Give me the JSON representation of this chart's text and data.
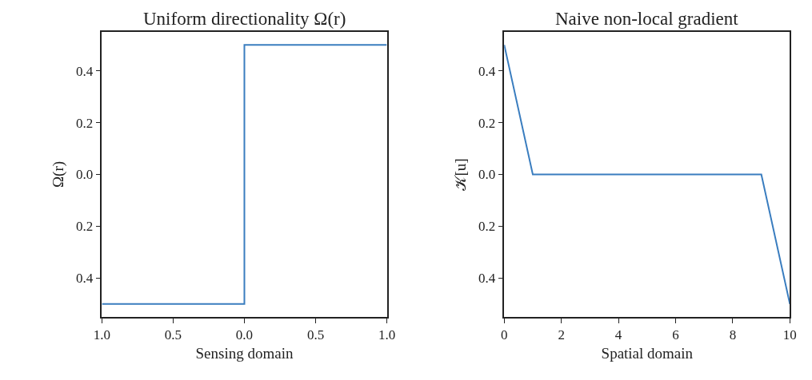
{
  "chart_data": [
    {
      "type": "line",
      "title": "Uniform directionality Ω(r)",
      "xlabel": "Sensing domain",
      "ylabel": "Ω(r)",
      "series": [
        {
          "color": "#3a7dbf",
          "x": [
            -1,
            0,
            0,
            1
          ],
          "values": [
            -0.5,
            -0.5,
            0.5,
            0.5
          ]
        }
      ],
      "xlim": [
        -1,
        1
      ],
      "xticks": [
        {
          "value": -1,
          "label": "1.0"
        },
        {
          "value": -0.5,
          "label": "0.5"
        },
        {
          "value": 0,
          "label": "0.0"
        },
        {
          "value": 0.5,
          "label": "0.5"
        },
        {
          "value": 1,
          "label": "1.0"
        }
      ],
      "ylim": [
        -0.55,
        0.55
      ],
      "yticks": [
        {
          "value": -0.4,
          "label": "0.4"
        },
        {
          "value": -0.2,
          "label": "0.2"
        },
        {
          "value": 0,
          "label": "0.0"
        },
        {
          "value": 0.2,
          "label": "0.2"
        },
        {
          "value": 0.4,
          "label": "0.4"
        }
      ],
      "marker": "none",
      "line_style": "solid"
    },
    {
      "type": "line",
      "title": "Naive non-local gradient",
      "xlabel": "Spatial domain",
      "ylabel": "𝒦[u]",
      "series": [
        {
          "color": "#3a7dbf",
          "x": [
            0,
            1,
            9,
            10
          ],
          "values": [
            0.5,
            0,
            0,
            -0.5
          ]
        }
      ],
      "xlim": [
        0,
        10
      ],
      "xticks": [
        0,
        2,
        4,
        6,
        8,
        10
      ],
      "ylim": [
        -0.55,
        0.55
      ],
      "yticks": [
        {
          "value": -0.4,
          "label": "0.4"
        },
        {
          "value": -0.2,
          "label": "0.2"
        },
        {
          "value": 0,
          "label": "0.0"
        },
        {
          "value": 0.2,
          "label": "0.2"
        },
        {
          "value": 0.4,
          "label": "0.4"
        }
      ],
      "marker": "none",
      "line_style": "solid"
    }
  ]
}
